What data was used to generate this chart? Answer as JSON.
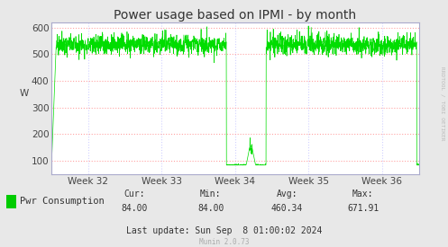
{
  "title": "Power usage based on IPMI - by month",
  "ylabel": "W",
  "bg_color": "#e8e8e8",
  "plot_bg_color": "#ffffff",
  "grid_color": "#ff9999",
  "grid_color2": "#ccccff",
  "line_color": "#00dd00",
  "week_labels": [
    "Week 32",
    "Week 33",
    "Week 34",
    "Week 35",
    "Week 36"
  ],
  "ylim": [
    50,
    620
  ],
  "yticks": [
    100,
    200,
    300,
    400,
    500,
    600
  ],
  "legend_label": "Pwr Consumption",
  "legend_color": "#00cc00",
  "cur": "84.00",
  "min": "84.00",
  "avg": "460.34",
  "max": "671.91",
  "last_update": "Last update: Sun Sep  8 01:00:02 2024",
  "munin_version": "Munin 2.0.73",
  "rrdtool_label": "RRDTOOL / TOBI OETIKER",
  "title_fontsize": 10,
  "axis_fontsize": 7.5,
  "legend_fontsize": 7.5,
  "footer_fontsize": 7
}
